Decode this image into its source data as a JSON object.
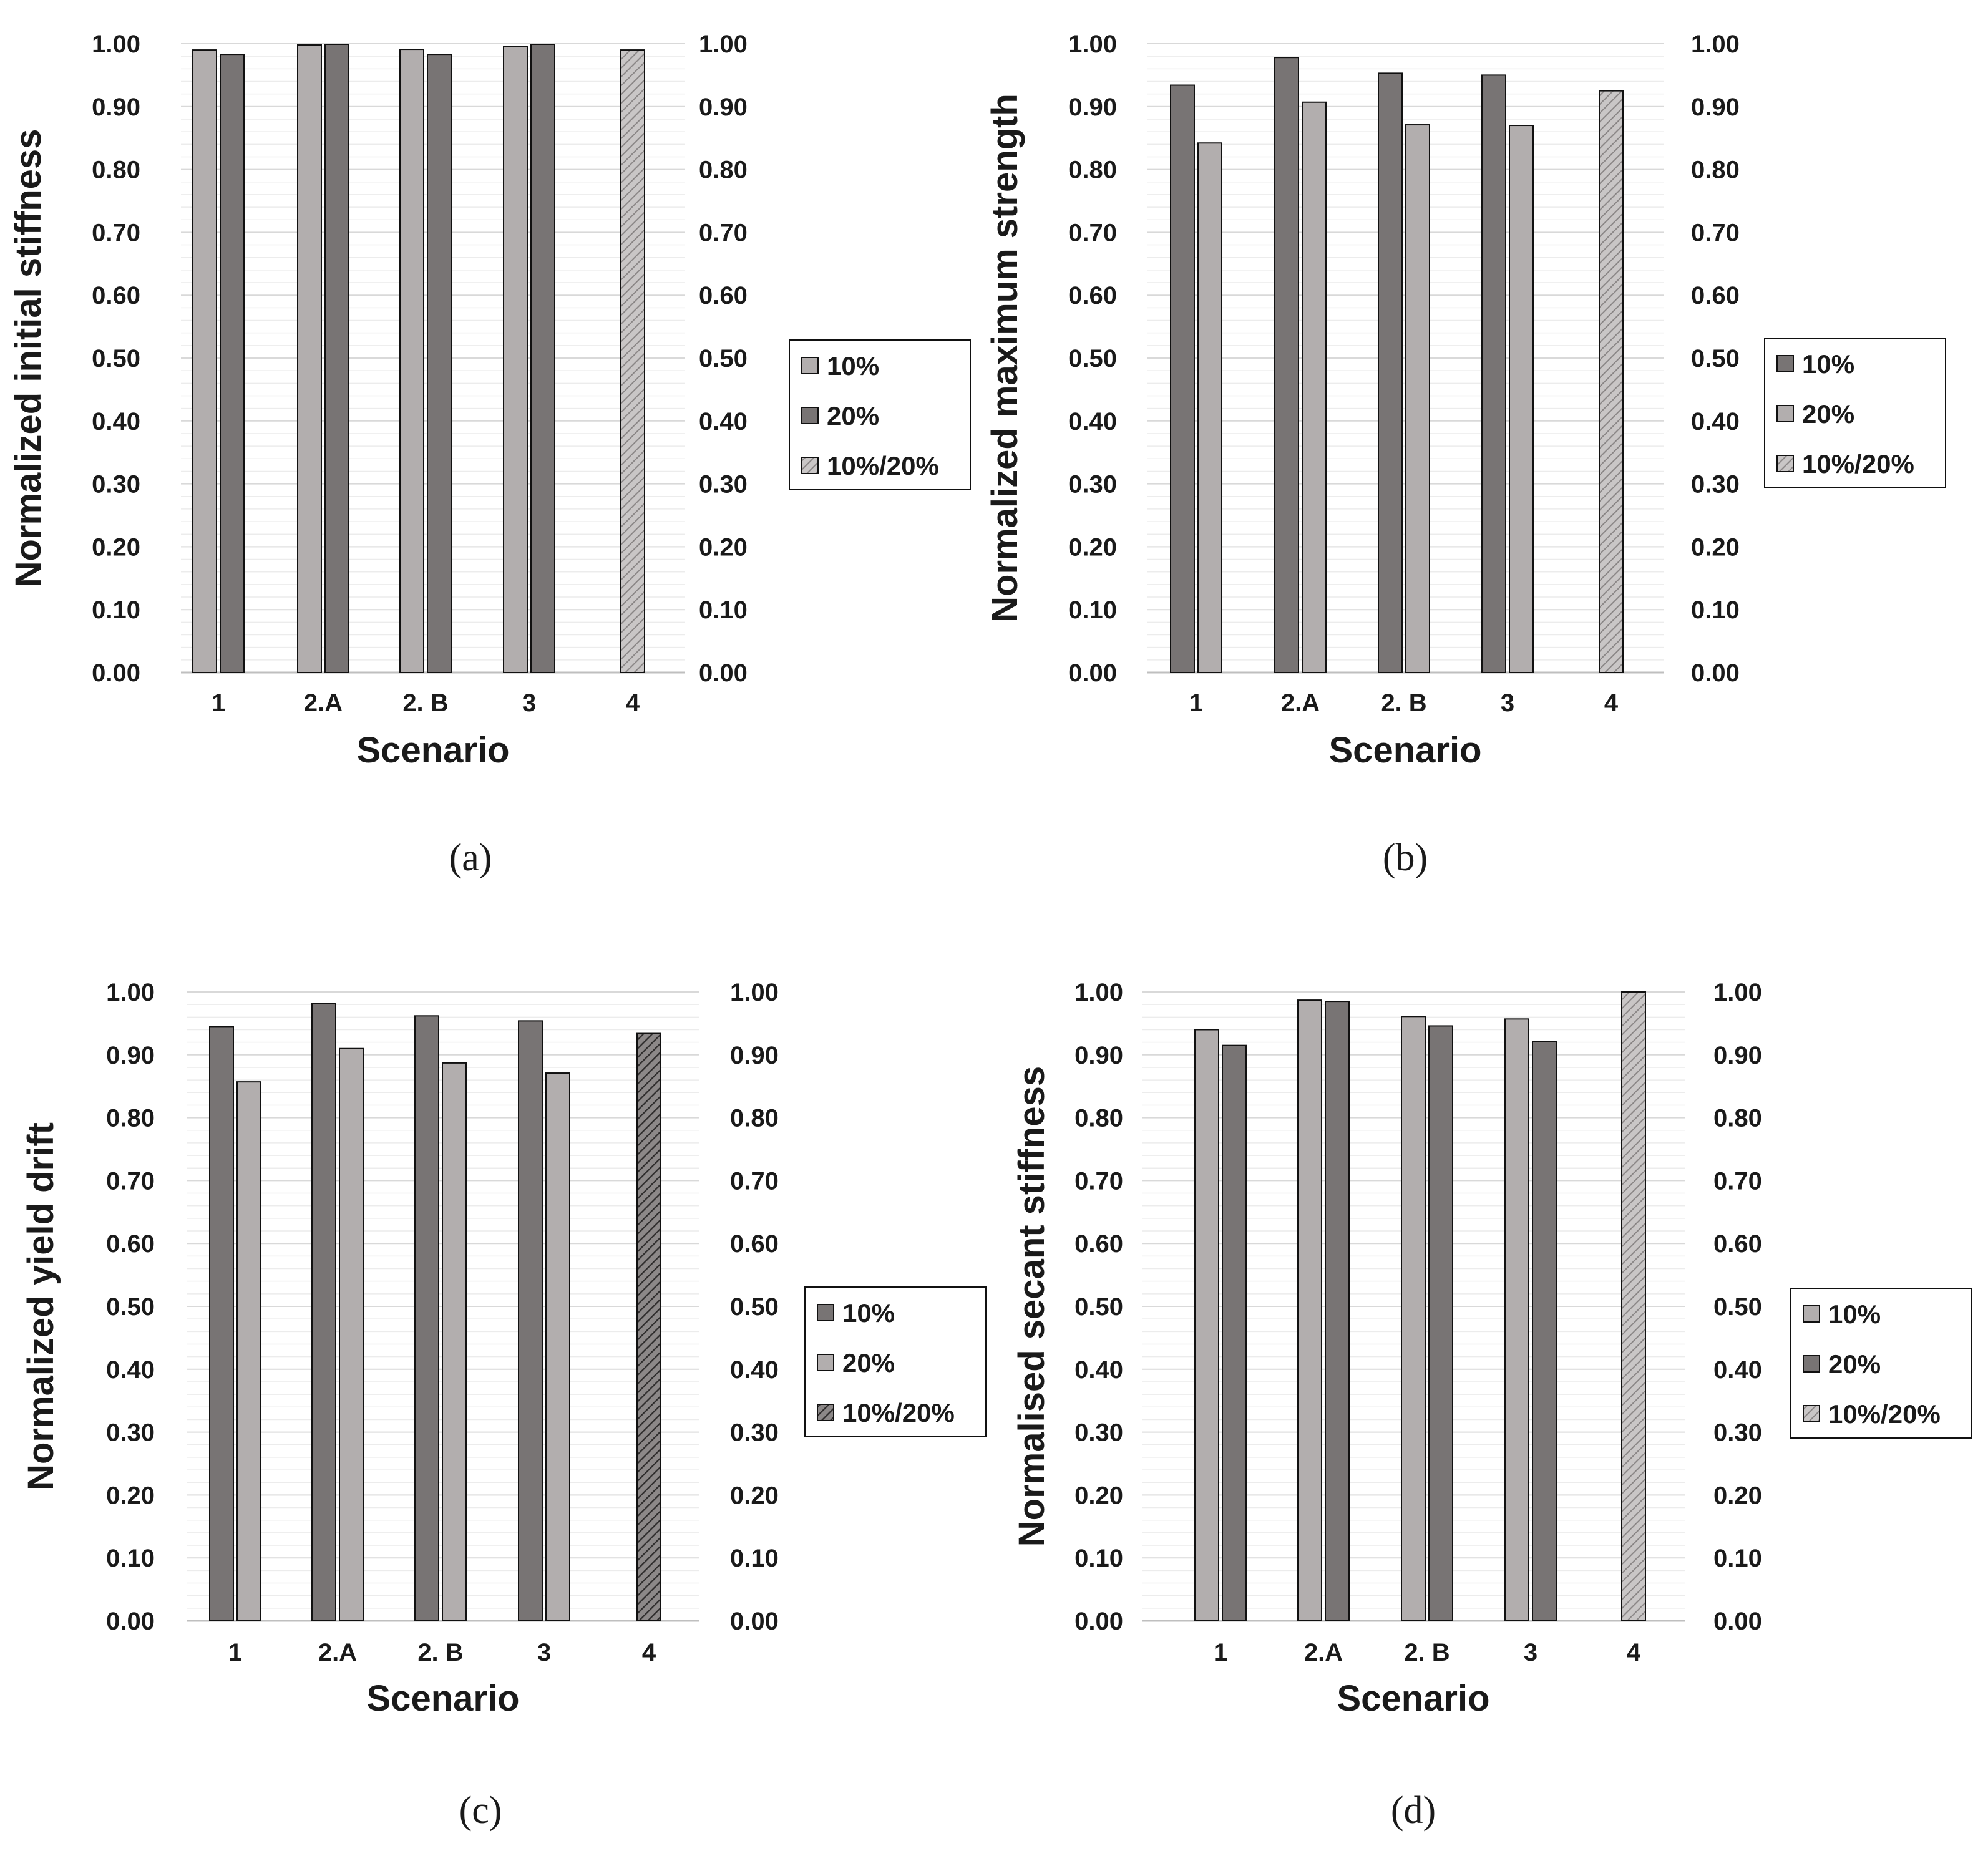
{
  "colors": {
    "light": "#b2aeae",
    "dark": "#787474",
    "grid": "#d9d9d9",
    "axis": "#bfbfbf",
    "stroke": "#111111"
  },
  "chart_data": [
    {
      "id": "a",
      "type": "bar",
      "caption": "(a)",
      "xlabel": "Scenario",
      "ylabel": "Normalized initial stiffness",
      "ylim": [
        0,
        1
      ],
      "yticks": [
        "0.00",
        "0.10",
        "0.20",
        "0.30",
        "0.40",
        "0.50",
        "0.60",
        "0.70",
        "0.80",
        "0.90",
        "1.00"
      ],
      "categories": [
        "1",
        "2.A",
        "2. B",
        "3",
        "4"
      ],
      "series": [
        {
          "name": "10%",
          "shade": "light",
          "values": [
            0.99,
            0.998,
            0.991,
            0.996,
            null
          ]
        },
        {
          "name": "20%",
          "shade": "dark",
          "values": [
            0.983,
            0.999,
            0.983,
            0.999,
            null
          ]
        },
        {
          "name": "10%/20%",
          "shade": "light-hatch",
          "values": [
            null,
            null,
            null,
            null,
            0.99
          ]
        }
      ],
      "legend": [
        "10%",
        "20%",
        "10%/20%"
      ]
    },
    {
      "id": "b",
      "type": "bar",
      "caption": "(b)",
      "xlabel": "Scenario",
      "ylabel": "Normalized maximum strength",
      "ylim": [
        0,
        1
      ],
      "yticks": [
        "0.00",
        "0.10",
        "0.20",
        "0.30",
        "0.40",
        "0.50",
        "0.60",
        "0.70",
        "0.80",
        "0.90",
        "1.00"
      ],
      "categories": [
        "1",
        "2.A",
        "2. B",
        "3",
        "4"
      ],
      "series": [
        {
          "name": "10%",
          "shade": "dark",
          "values": [
            0.934,
            0.978,
            0.953,
            0.95,
            null
          ]
        },
        {
          "name": "20%",
          "shade": "light",
          "values": [
            0.842,
            0.907,
            0.871,
            0.87,
            null
          ]
        },
        {
          "name": "10%/20%",
          "shade": "light-hatch",
          "values": [
            null,
            null,
            null,
            null,
            0.925
          ]
        }
      ],
      "legend": [
        "10%",
        "20%",
        "10%/20%"
      ]
    },
    {
      "id": "c",
      "type": "bar",
      "caption": "(c)",
      "xlabel": "Scenario",
      "ylabel": "Normalized yield drift",
      "ylim": [
        0,
        1
      ],
      "yticks": [
        "0.00",
        "0.10",
        "0.20",
        "0.30",
        "0.40",
        "0.50",
        "0.60",
        "0.70",
        "0.80",
        "0.90",
        "1.00"
      ],
      "categories": [
        "1",
        "2.A",
        "2. B",
        "3",
        "4"
      ],
      "series": [
        {
          "name": "10%",
          "shade": "dark",
          "values": [
            0.945,
            0.982,
            0.962,
            0.954,
            null
          ]
        },
        {
          "name": "20%",
          "shade": "light",
          "values": [
            0.857,
            0.91,
            0.887,
            0.871,
            null
          ]
        },
        {
          "name": "10%/20%",
          "shade": "dark-hatch",
          "values": [
            null,
            null,
            null,
            null,
            0.934
          ]
        }
      ],
      "legend": [
        "10%",
        "20%",
        "10%/20%"
      ]
    },
    {
      "id": "d",
      "type": "bar",
      "caption": "(d)",
      "xlabel": "Scenario",
      "ylabel": "Normalised secant stiffness",
      "ylim": [
        0,
        1
      ],
      "yticks": [
        "0.00",
        "0.10",
        "0.20",
        "0.30",
        "0.40",
        "0.50",
        "0.60",
        "0.70",
        "0.80",
        "0.90",
        "1.00"
      ],
      "categories": [
        "1",
        "2.A",
        "2. B",
        "3",
        "4"
      ],
      "series": [
        {
          "name": "10%",
          "shade": "light",
          "values": [
            0.94,
            0.987,
            0.961,
            0.957,
            null
          ]
        },
        {
          "name": "20%",
          "shade": "dark",
          "values": [
            0.915,
            0.985,
            0.946,
            0.921,
            null
          ]
        },
        {
          "name": "10%/20%",
          "shade": "light-hatch",
          "values": [
            null,
            null,
            null,
            null,
            1.0
          ]
        }
      ],
      "legend": [
        "10%",
        "20%",
        "10%/20%"
      ]
    }
  ]
}
